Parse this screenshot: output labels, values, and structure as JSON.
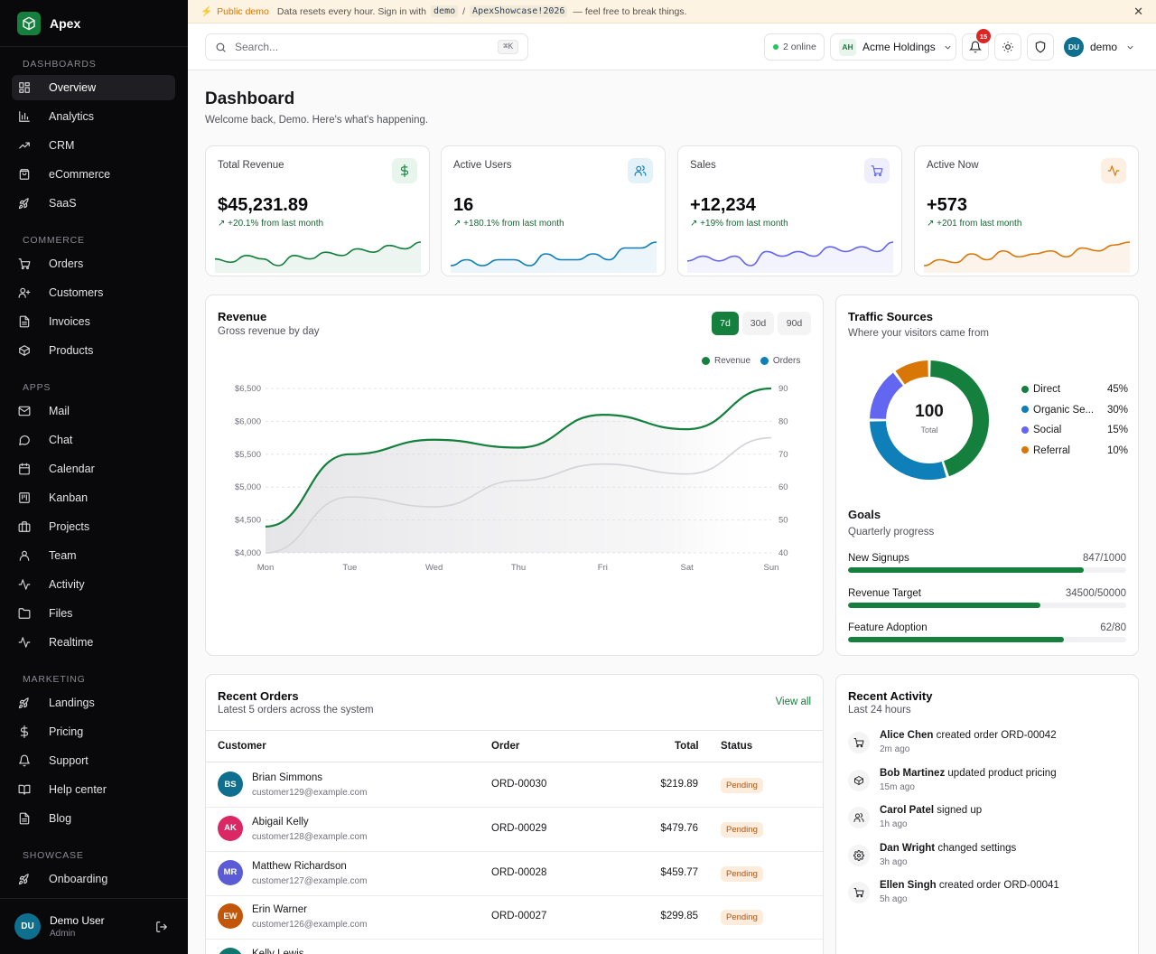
{
  "brand": {
    "name": "Apex"
  },
  "sidebar": {
    "sections": [
      {
        "title": "DASHBOARDS",
        "items": [
          {
            "label": "Overview",
            "icon": "grid-icon",
            "active": true
          },
          {
            "label": "Analytics",
            "icon": "bar-chart-icon"
          },
          {
            "label": "CRM",
            "icon": "trending-up-icon"
          },
          {
            "label": "eCommerce",
            "icon": "shopping-bag-icon"
          },
          {
            "label": "SaaS",
            "icon": "rocket-icon"
          }
        ]
      },
      {
        "title": "COMMERCE",
        "items": [
          {
            "label": "Orders",
            "icon": "cart-icon"
          },
          {
            "label": "Customers",
            "icon": "user-plus-icon"
          },
          {
            "label": "Invoices",
            "icon": "file-text-icon"
          },
          {
            "label": "Products",
            "icon": "box-icon"
          }
        ]
      },
      {
        "title": "APPS",
        "items": [
          {
            "label": "Mail",
            "icon": "mail-icon"
          },
          {
            "label": "Chat",
            "icon": "chat-bubble-icon"
          },
          {
            "label": "Calendar",
            "icon": "calendar-icon"
          },
          {
            "label": "Kanban",
            "icon": "kanban-icon"
          },
          {
            "label": "Projects",
            "icon": "briefcase-icon"
          },
          {
            "label": "Team",
            "icon": "user-icon"
          },
          {
            "label": "Activity",
            "icon": "activity-icon"
          },
          {
            "label": "Files",
            "icon": "folder-icon"
          },
          {
            "label": "Realtime",
            "icon": "pulse-icon"
          }
        ]
      },
      {
        "title": "MARKETING",
        "items": [
          {
            "label": "Landings",
            "icon": "rocket-icon"
          },
          {
            "label": "Pricing",
            "icon": "dollar-icon"
          },
          {
            "label": "Support",
            "icon": "bell-icon"
          },
          {
            "label": "Help center",
            "icon": "book-icon"
          },
          {
            "label": "Blog",
            "icon": "file-text-icon"
          }
        ]
      },
      {
        "title": "SHOWCASE",
        "items": [
          {
            "label": "Onboarding",
            "icon": "rocket-icon"
          }
        ]
      }
    ],
    "user": {
      "initials": "DU",
      "name": "Demo User",
      "role": "Admin"
    }
  },
  "banner": {
    "tag": "Public demo",
    "text_before": "Data resets every hour. Sign in with",
    "user_code": "demo",
    "separator": "/",
    "pass_code": "ApexShowcase!2026",
    "text_after": "— feel free to break things."
  },
  "topbar": {
    "search_placeholder": "Search...",
    "shortcut": "⌘K",
    "online": "2 online",
    "org_initials": "AH",
    "org_name": "Acme Holdings",
    "notif_count": "15",
    "user_initials": "DU",
    "user_name": "demo"
  },
  "page": {
    "title": "Dashboard",
    "subtitle": "Welcome back, Demo. Here's what's happening."
  },
  "stats": [
    {
      "title": "Total Revenue",
      "value": "$45,231.89",
      "change": "+20.1% from last month",
      "icon": "dollar-icon",
      "color": "#15803d",
      "bg": "#e8f5ec",
      "spark": [
        5,
        4,
        6,
        5,
        3,
        6,
        5,
        7,
        6,
        8,
        7,
        9,
        8,
        10
      ]
    },
    {
      "title": "Active Users",
      "value": "16",
      "change": "+180.1% from last month",
      "icon": "users-icon",
      "color": "#0e7fb8",
      "bg": "#e3f1f8",
      "spark": [
        3,
        4,
        3,
        4,
        4,
        3,
        5,
        4,
        4,
        5,
        4,
        6,
        6,
        7
      ]
    },
    {
      "title": "Sales",
      "value": "+12,234",
      "change": "+19% from last month",
      "icon": "cart-icon",
      "color": "#6366f1",
      "bg": "#eeeefc",
      "spark": [
        5,
        6,
        5,
        6,
        4,
        7,
        6,
        7,
        6,
        8,
        7,
        8,
        7,
        9
      ]
    },
    {
      "title": "Active Now",
      "value": "+573",
      "change": "+201 from last month",
      "icon": "pulse-icon",
      "color": "#d97706",
      "bg": "#fdf0e2",
      "spark": [
        2,
        4,
        3,
        6,
        4,
        7,
        5,
        6,
        7,
        5,
        8,
        7,
        9,
        10
      ]
    }
  ],
  "revenue": {
    "title": "Revenue",
    "subtitle": "Gross revenue by day",
    "ranges": [
      "7d",
      "30d",
      "90d"
    ],
    "active_range": "7d"
  },
  "chart_data": {
    "type": "line",
    "categories": [
      "Mon",
      "Tue",
      "Wed",
      "Thu",
      "Fri",
      "Sat",
      "Sun"
    ],
    "series": [
      {
        "name": "Revenue",
        "axis": "left",
        "color": "#15803d",
        "values": [
          4400,
          5500,
          5720,
          5600,
          6100,
          5880,
          6500
        ]
      },
      {
        "name": "Orders",
        "axis": "right",
        "color": "#0e7fb8",
        "values": [
          40,
          57,
          54,
          62,
          67,
          64,
          75
        ]
      }
    ],
    "ylim_left": [
      4000,
      6500
    ],
    "yticks_left": [
      "$4,000",
      "$4,500",
      "$5,000",
      "$5,500",
      "$6,000",
      "$6,500"
    ],
    "ylim_right": [
      40,
      90
    ],
    "yticks_right": [
      "40",
      "50",
      "60",
      "70",
      "80",
      "90"
    ],
    "legend": "top-right",
    "grid": true
  },
  "traffic": {
    "title": "Traffic Sources",
    "subtitle": "Where your visitors came from",
    "total": "100",
    "total_label": "Total",
    "sources": [
      {
        "label": "Direct",
        "pct": "45%",
        "value": 45,
        "color": "#15803d"
      },
      {
        "label": "Organic Se...",
        "pct": "30%",
        "value": 30,
        "color": "#0e7fb8"
      },
      {
        "label": "Social",
        "pct": "15%",
        "value": 15,
        "color": "#6366f1"
      },
      {
        "label": "Referral",
        "pct": "10%",
        "value": 10,
        "color": "#d97706"
      }
    ]
  },
  "goals": {
    "title": "Goals",
    "subtitle": "Quarterly progress",
    "items": [
      {
        "label": "New Signups",
        "value": "847/1000",
        "fraction": 0.847
      },
      {
        "label": "Revenue Target",
        "value": "34500/50000",
        "fraction": 0.69
      },
      {
        "label": "Feature Adoption",
        "value": "62/80",
        "fraction": 0.775
      }
    ]
  },
  "orders": {
    "title": "Recent Orders",
    "subtitle": "Latest 5 orders across the system",
    "view_all": "View all",
    "columns": [
      "Customer",
      "Order",
      "Total",
      "Status"
    ],
    "rows": [
      {
        "initials": "BS",
        "color": "#0e6f8f",
        "name": "Brian Simmons",
        "email": "customer129@example.com",
        "order": "ORD-00030",
        "total": "$219.89",
        "status": "Pending"
      },
      {
        "initials": "AK",
        "color": "#db2763",
        "name": "Abigail Kelly",
        "email": "customer128@example.com",
        "order": "ORD-00029",
        "total": "$479.76",
        "status": "Pending"
      },
      {
        "initials": "MR",
        "color": "#5b5bd6",
        "name": "Matthew Richardson",
        "email": "customer127@example.com",
        "order": "ORD-00028",
        "total": "$459.77",
        "status": "Pending"
      },
      {
        "initials": "EW",
        "color": "#c2570c",
        "name": "Erin Warner",
        "email": "customer126@example.com",
        "order": "ORD-00027",
        "total": "$299.85",
        "status": "Pending"
      },
      {
        "initials": "KL",
        "color": "#0f766e",
        "name": "Kelly Lewis",
        "email": "",
        "order": "",
        "total": "",
        "status": ""
      }
    ]
  },
  "activity": {
    "title": "Recent Activity",
    "subtitle": "Last 24 hours",
    "items": [
      {
        "who": "Alice Chen",
        "what": "created order ORD-00042",
        "time": "2m ago",
        "icon": "cart-icon"
      },
      {
        "who": "Bob Martinez",
        "what": "updated product pricing",
        "time": "15m ago",
        "icon": "box-icon"
      },
      {
        "who": "Carol Patel",
        "what": "signed up",
        "time": "1h ago",
        "icon": "users-icon"
      },
      {
        "who": "Dan Wright",
        "what": "changed settings",
        "time": "3h ago",
        "icon": "gear-icon"
      },
      {
        "who": "Ellen Singh",
        "what": "created order ORD-00041",
        "time": "5h ago",
        "icon": "cart-icon"
      }
    ]
  }
}
